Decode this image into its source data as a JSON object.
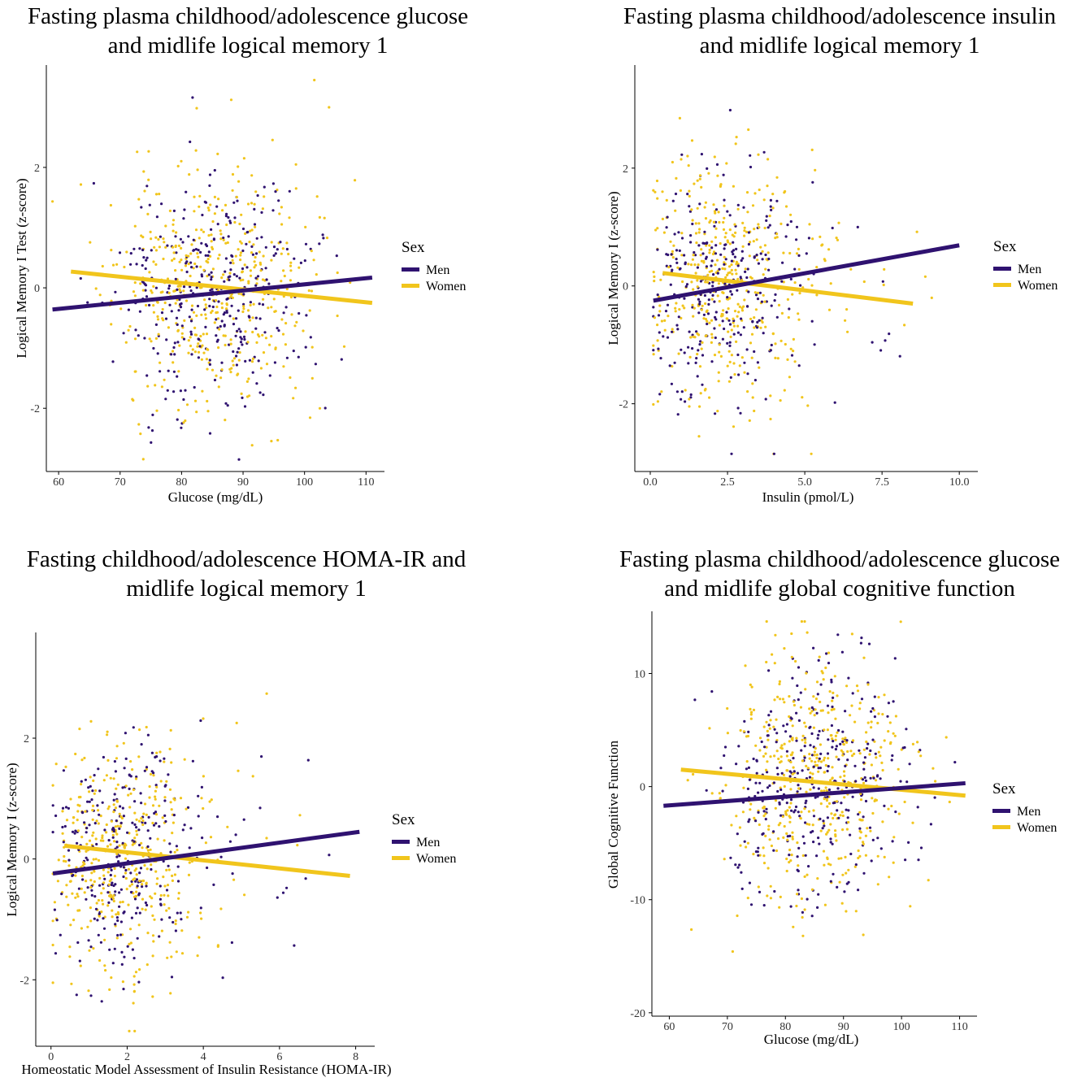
{
  "legend": {
    "title": "Sex",
    "men": "Men",
    "women": "Women"
  },
  "colors": {
    "men": "#2f1270",
    "women": "#f1c51c",
    "axis": "#000000"
  },
  "chart_data": [
    {
      "type": "scatter",
      "title_lines": [
        "Fasting plasma childhood/adolescence glucose",
        "and midlife logical memory 1"
      ],
      "xlabel": "Glucose (mg/dL)",
      "ylabel": "Logical Memory I Test (z-score)",
      "xlim": [
        58,
        113
      ],
      "ylim": [
        -3.05,
        3.7
      ],
      "xticks": [
        60,
        70,
        80,
        90,
        100,
        110
      ],
      "xtick_labels": [
        "60",
        "70",
        "80",
        "90",
        "100",
        "110"
      ],
      "yticks": [
        -2,
        0,
        2
      ],
      "ytick_labels": [
        "-2",
        "0",
        "2"
      ],
      "series": [
        {
          "name": "Men",
          "trend": [
            [
              59,
              -0.36
            ],
            [
              111,
              0.17
            ]
          ]
        },
        {
          "name": "Women",
          "trend": [
            [
              62,
              0.27
            ],
            [
              111,
              -0.25
            ]
          ]
        }
      ],
      "scatter_sim": {
        "men_n": 340,
        "women_n": 470,
        "xc": 85,
        "xs": 8,
        "yc": 0,
        "ys": 1.0,
        "x_clip": [
          59,
          111
        ],
        "y_clip": [
          -2.85,
          3.45
        ],
        "seed": 11
      }
    },
    {
      "type": "scatter",
      "title_lines": [
        "Fasting plasma childhood/adolescence insulin",
        "and midlife logical memory 1"
      ],
      "xlabel": "Insulin (pmol/L)",
      "ylabel": "Logical Memory I (z-score)",
      "xlim": [
        -0.5,
        10.6
      ],
      "ylim": [
        -3.15,
        3.75
      ],
      "xticks": [
        0,
        2.5,
        5,
        7.5,
        10
      ],
      "xtick_labels": [
        "0.0",
        "2.5",
        "5.0",
        "7.5",
        "10.0"
      ],
      "yticks": [
        -2,
        0,
        2
      ],
      "ytick_labels": [
        "-2",
        "0",
        "2"
      ],
      "series": [
        {
          "name": "Men",
          "trend": [
            [
              0.1,
              -0.25
            ],
            [
              10,
              0.69
            ]
          ]
        },
        {
          "name": "Women",
          "trend": [
            [
              0.4,
              0.22
            ],
            [
              8.5,
              -0.3
            ]
          ]
        }
      ],
      "scatter_sim": {
        "men_n": 300,
        "women_n": 430,
        "xc": 2.2,
        "xs": 1.4,
        "yc": 0,
        "ys": 1.0,
        "x_clip": [
          0.1,
          10.1
        ],
        "y_clip": [
          -2.85,
          3.4
        ],
        "seed": 23
      }
    },
    {
      "type": "scatter",
      "title_lines": [
        "Fasting childhood/adolescence HOMA-IR and",
        "midlife logical memory 1"
      ],
      "xlabel": "Homeostatic Model Assessment of Insulin Resistance (HOMA-IR)",
      "ylabel": "Logical Memory I (z-score)",
      "xlim": [
        -0.4,
        8.5
      ],
      "ylim": [
        -3.1,
        3.75
      ],
      "xticks": [
        0,
        2,
        4,
        6,
        8
      ],
      "xtick_labels": [
        "0",
        "2",
        "4",
        "6",
        "8"
      ],
      "yticks": [
        -2,
        0,
        2
      ],
      "ytick_labels": [
        "-2",
        "0",
        "2"
      ],
      "series": [
        {
          "name": "Men",
          "trend": [
            [
              0.05,
              -0.24
            ],
            [
              8.1,
              0.45
            ]
          ]
        },
        {
          "name": "Women",
          "trend": [
            [
              0.35,
              0.22
            ],
            [
              7.85,
              -0.28
            ]
          ]
        }
      ],
      "scatter_sim": {
        "men_n": 300,
        "women_n": 430,
        "xc": 1.8,
        "xs": 1.1,
        "yc": 0,
        "ys": 1.0,
        "x_clip": [
          0.05,
          8.1
        ],
        "y_clip": [
          -2.85,
          3.35
        ],
        "seed": 37
      }
    },
    {
      "type": "scatter",
      "title_lines": [
        "Fasting plasma childhood/adolescence glucose",
        "and midlife global cognitive function"
      ],
      "xlabel": "Glucose (mg/dL)",
      "ylabel": "Global Cognitive Function",
      "xlim": [
        57,
        113
      ],
      "ylim": [
        -20.3,
        15.5
      ],
      "xticks": [
        60,
        70,
        80,
        90,
        100,
        110
      ],
      "xtick_labels": [
        "60",
        "70",
        "80",
        "90",
        "100",
        "110"
      ],
      "yticks": [
        -20,
        -10,
        0,
        10
      ],
      "ytick_labels": [
        "-20",
        "-10",
        "0",
        "10"
      ],
      "series": [
        {
          "name": "Men",
          "trend": [
            [
              59,
              -1.7
            ],
            [
              111,
              0.3
            ]
          ]
        },
        {
          "name": "Women",
          "trend": [
            [
              62,
              1.5
            ],
            [
              111,
              -0.8
            ]
          ]
        }
      ],
      "scatter_sim": {
        "men_n": 340,
        "women_n": 470,
        "xc": 85,
        "xs": 8,
        "yc": 0,
        "ys": 5.5,
        "x_clip": [
          59,
          111
        ],
        "y_clip": [
          -19,
          14.6
        ],
        "seed": 51
      }
    }
  ]
}
